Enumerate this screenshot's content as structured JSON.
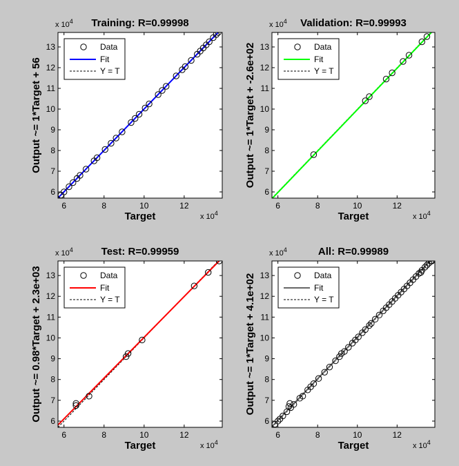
{
  "colors": {
    "figure_bg": "#c8c8c8",
    "axes_bg": "#ffffff",
    "data_marker": "#000000",
    "yt_line": "#000000",
    "training_fit": "#0000ff",
    "validation_fit": "#00ff00",
    "test_fit": "#ff0000",
    "all_fit": "#666666"
  },
  "legend_labels": [
    "Data",
    "Fit",
    "Y = T"
  ],
  "chart_data": [
    {
      "type": "scatter",
      "title": "Training: R=0.99998",
      "xlabel": "Target",
      "ylabel": "Output ~= 1*Target + 56",
      "x_multiplier": "x 10",
      "y_multiplier": "x 10",
      "exponent": "4",
      "xlim": [
        5.7,
        13.9
      ],
      "ylim": [
        5.7,
        13.7
      ],
      "xticks": [
        "6",
        "8",
        "10",
        "12"
      ],
      "yticks": [
        "6",
        "7",
        "8",
        "9",
        "10",
        "11",
        "12",
        "13"
      ],
      "fit": {
        "slope": 1.0,
        "intercept": 0.0056
      },
      "fit_color": "#0000ff",
      "legend_position": "top-left",
      "grid": false,
      "points": [
        [
          5.85,
          5.85
        ],
        [
          6.0,
          6.0
        ],
        [
          6.25,
          6.25
        ],
        [
          6.45,
          6.45
        ],
        [
          6.65,
          6.65
        ],
        [
          6.8,
          6.8
        ],
        [
          7.1,
          7.1
        ],
        [
          7.5,
          7.5
        ],
        [
          7.65,
          7.65
        ],
        [
          8.05,
          8.05
        ],
        [
          8.35,
          8.35
        ],
        [
          8.6,
          8.6
        ],
        [
          8.9,
          8.9
        ],
        [
          9.35,
          9.35
        ],
        [
          9.55,
          9.55
        ],
        [
          9.75,
          9.75
        ],
        [
          10.05,
          10.05
        ],
        [
          10.25,
          10.25
        ],
        [
          10.7,
          10.7
        ],
        [
          10.9,
          10.9
        ],
        [
          11.1,
          11.1
        ],
        [
          11.6,
          11.6
        ],
        [
          11.9,
          11.9
        ],
        [
          12.05,
          12.05
        ],
        [
          12.35,
          12.35
        ],
        [
          12.65,
          12.65
        ],
        [
          12.8,
          12.8
        ],
        [
          12.95,
          12.95
        ],
        [
          13.1,
          13.1
        ],
        [
          13.25,
          13.25
        ],
        [
          13.45,
          13.45
        ],
        [
          13.6,
          13.6
        ],
        [
          13.7,
          13.7
        ]
      ]
    },
    {
      "type": "scatter",
      "title": "Validation: R=0.99993",
      "xlabel": "Target",
      "ylabel": "Output ~= 1*Target + -2.6e+02",
      "x_multiplier": "x 10",
      "y_multiplier": "x 10",
      "exponent": "4",
      "xlim": [
        5.7,
        13.9
      ],
      "ylim": [
        5.7,
        13.7
      ],
      "xticks": [
        "6",
        "8",
        "10",
        "12"
      ],
      "yticks": [
        "6",
        "7",
        "8",
        "9",
        "10",
        "11",
        "12",
        "13"
      ],
      "fit": {
        "slope": 1.0,
        "intercept": -0.026
      },
      "fit_color": "#00ff00",
      "legend_position": "top-left",
      "grid": false,
      "points": [
        [
          7.8,
          7.8
        ],
        [
          10.4,
          10.4
        ],
        [
          10.6,
          10.6
        ],
        [
          11.45,
          11.45
        ],
        [
          11.75,
          11.75
        ],
        [
          12.3,
          12.3
        ],
        [
          12.6,
          12.6
        ],
        [
          13.25,
          13.25
        ],
        [
          13.5,
          13.5
        ]
      ]
    },
    {
      "type": "scatter",
      "title": "Test: R=0.99959",
      "xlabel": "Target",
      "ylabel": "Output ~= 0.98*Target + 2.3e+03",
      "x_multiplier": "x 10",
      "y_multiplier": "x 10",
      "exponent": "4",
      "xlim": [
        5.7,
        13.9
      ],
      "ylim": [
        5.7,
        13.7
      ],
      "xticks": [
        "6",
        "8",
        "10",
        "12"
      ],
      "yticks": [
        "6",
        "7",
        "8",
        "9",
        "10",
        "11",
        "12",
        "13"
      ],
      "fit": {
        "slope": 0.98,
        "intercept": 0.23
      },
      "fit_color": "#ff0000",
      "legend_position": "top-left",
      "grid": false,
      "points": [
        [
          6.6,
          6.75
        ],
        [
          6.6,
          6.85
        ],
        [
          7.25,
          7.2
        ],
        [
          9.1,
          9.1
        ],
        [
          9.2,
          9.25
        ],
        [
          9.9,
          9.9
        ],
        [
          12.5,
          12.5
        ],
        [
          13.2,
          13.15
        ],
        [
          13.75,
          13.7
        ]
      ]
    },
    {
      "type": "scatter",
      "title": "All: R=0.99989",
      "xlabel": "Target",
      "ylabel": "Output ~= 1*Target + 4.1e+02",
      "x_multiplier": "x 10",
      "y_multiplier": "x 10",
      "exponent": "4",
      "xlim": [
        5.7,
        13.9
      ],
      "ylim": [
        5.7,
        13.7
      ],
      "xticks": [
        "6",
        "8",
        "10",
        "12"
      ],
      "yticks": [
        "6",
        "7",
        "8",
        "9",
        "10",
        "11",
        "12",
        "13"
      ],
      "fit": {
        "slope": 1.0,
        "intercept": 0.041
      },
      "fit_color": "#666666",
      "legend_position": "top-left",
      "grid": false,
      "points": [
        [
          5.85,
          5.85
        ],
        [
          6.0,
          6.0
        ],
        [
          6.1,
          6.1
        ],
        [
          6.25,
          6.25
        ],
        [
          6.45,
          6.45
        ],
        [
          6.55,
          6.7
        ],
        [
          6.6,
          6.85
        ],
        [
          6.65,
          6.65
        ],
        [
          6.8,
          6.8
        ],
        [
          7.1,
          7.1
        ],
        [
          7.25,
          7.2
        ],
        [
          7.5,
          7.5
        ],
        [
          7.65,
          7.65
        ],
        [
          7.8,
          7.8
        ],
        [
          8.05,
          8.05
        ],
        [
          8.35,
          8.35
        ],
        [
          8.6,
          8.6
        ],
        [
          8.9,
          8.9
        ],
        [
          9.1,
          9.1
        ],
        [
          9.2,
          9.25
        ],
        [
          9.35,
          9.35
        ],
        [
          9.55,
          9.55
        ],
        [
          9.75,
          9.75
        ],
        [
          9.9,
          9.9
        ],
        [
          10.05,
          10.05
        ],
        [
          10.25,
          10.25
        ],
        [
          10.4,
          10.4
        ],
        [
          10.6,
          10.6
        ],
        [
          10.7,
          10.7
        ],
        [
          10.9,
          10.9
        ],
        [
          11.1,
          11.1
        ],
        [
          11.3,
          11.3
        ],
        [
          11.45,
          11.45
        ],
        [
          11.6,
          11.6
        ],
        [
          11.75,
          11.75
        ],
        [
          11.9,
          11.9
        ],
        [
          12.05,
          12.05
        ],
        [
          12.2,
          12.2
        ],
        [
          12.35,
          12.35
        ],
        [
          12.5,
          12.5
        ],
        [
          12.65,
          12.65
        ],
        [
          12.8,
          12.8
        ],
        [
          12.95,
          12.95
        ],
        [
          13.1,
          13.1
        ],
        [
          13.2,
          13.15
        ],
        [
          13.25,
          13.25
        ],
        [
          13.4,
          13.4
        ],
        [
          13.5,
          13.5
        ],
        [
          13.6,
          13.6
        ],
        [
          13.7,
          13.7
        ],
        [
          13.75,
          13.7
        ]
      ]
    }
  ]
}
